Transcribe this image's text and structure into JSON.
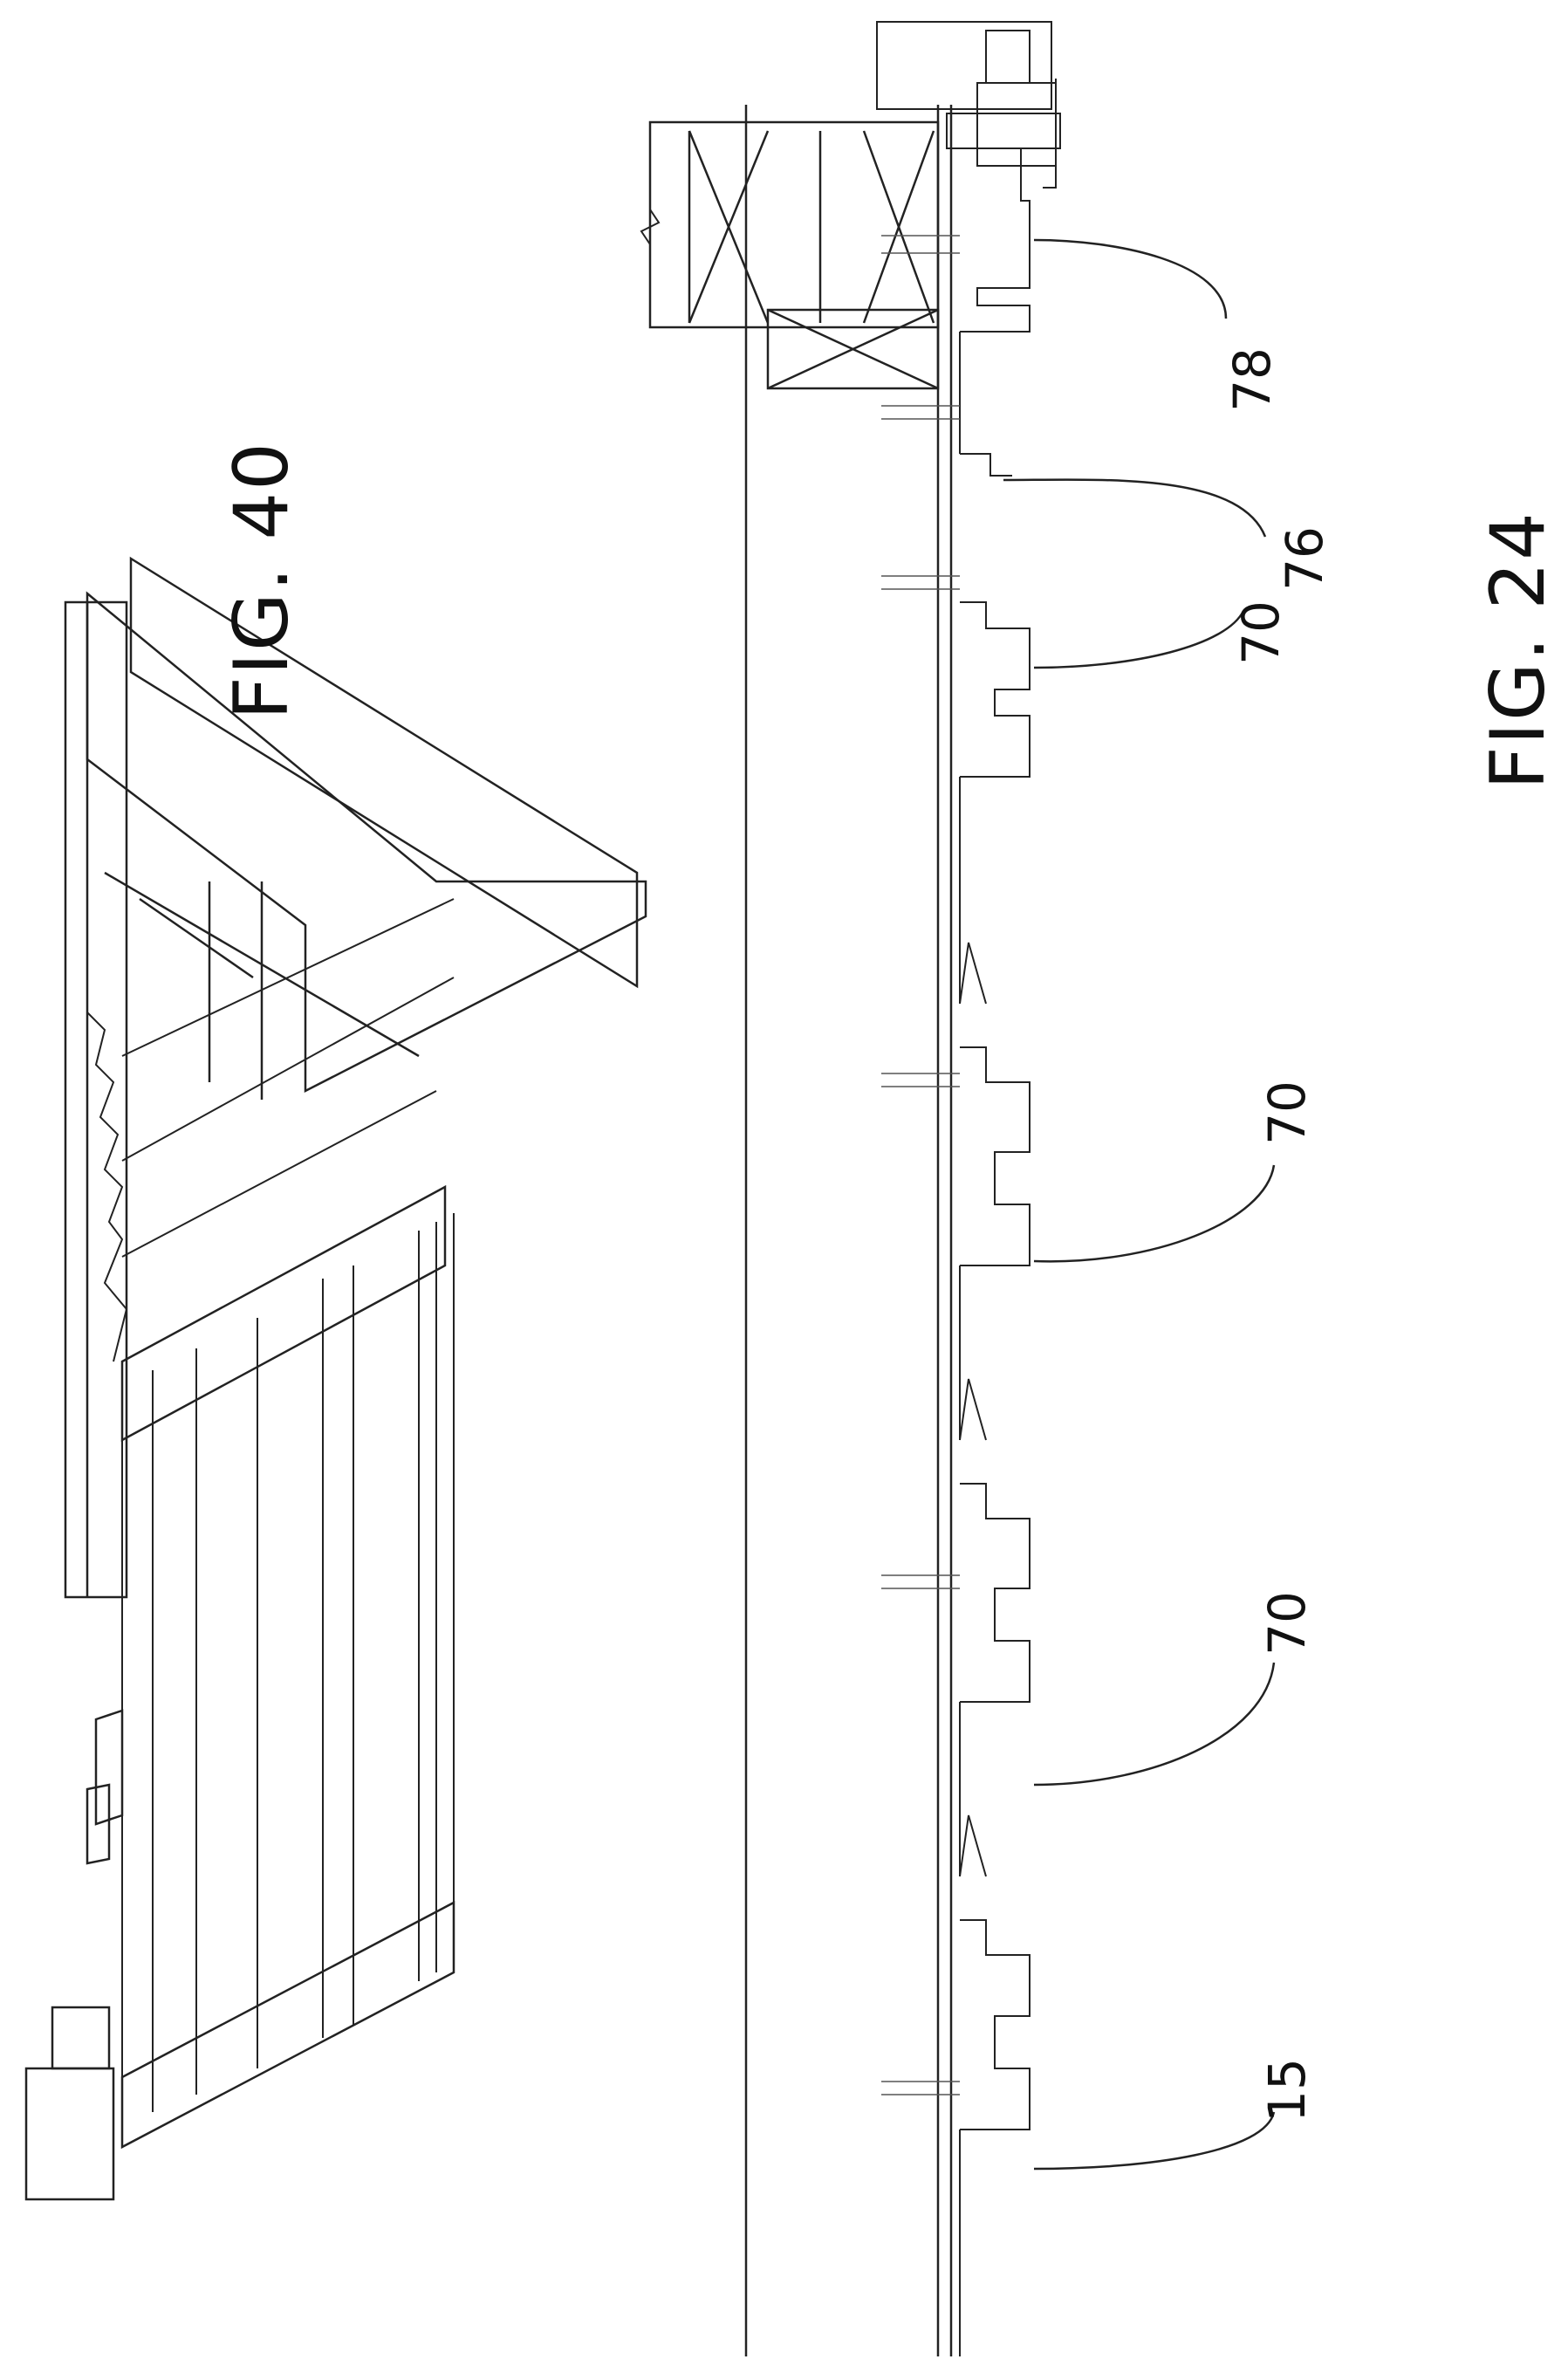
{
  "figures": {
    "fig40": {
      "title": "FIG. 40"
    },
    "fig24": {
      "title": "FIG. 24"
    }
  },
  "reference_numerals": {
    "r78": "78",
    "r76": "76",
    "r70a": "70",
    "r70b": "70",
    "r70c": "70",
    "r15": "15"
  },
  "colors": {
    "line": "#222222",
    "light_line": "#555555",
    "background": "#ffffff"
  }
}
